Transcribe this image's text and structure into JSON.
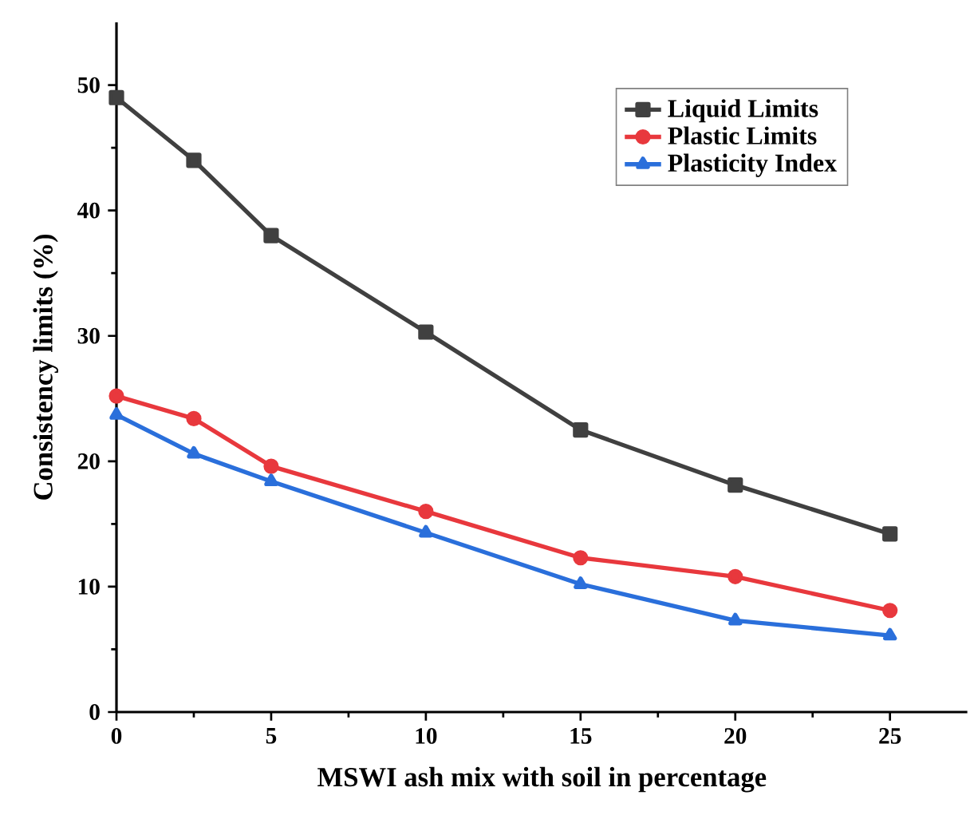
{
  "chart_data": {
    "type": "line",
    "xlabel": "MSWI ash mix with soil in percentage",
    "ylabel": "Consistency limits (%)",
    "x": [
      0,
      2.5,
      5,
      10,
      15,
      20,
      25
    ],
    "series": [
      {
        "name": "Liquid Limits",
        "color": "#404040",
        "marker": "square",
        "values": [
          49,
          44,
          38,
          30.3,
          22.5,
          18.1,
          14.2
        ]
      },
      {
        "name": "Plastic Limits",
        "color": "#e8383d",
        "marker": "circle",
        "values": [
          25.2,
          23.4,
          19.6,
          16,
          12.3,
          10.8,
          8.1
        ]
      },
      {
        "name": "Plasticity Index",
        "color": "#2a6fdb",
        "marker": "triangle",
        "values": [
          23.7,
          20.6,
          18.4,
          14.3,
          10.2,
          7.3,
          6.1
        ]
      }
    ],
    "xlim": [
      0,
      27.5
    ],
    "xticks": [
      0,
      5,
      10,
      15,
      20,
      25
    ],
    "ylim": [
      0,
      55
    ],
    "yticks": [
      0,
      10,
      20,
      30,
      40,
      50
    ],
    "grid": false,
    "legend": "top right",
    "line_style": "solid"
  }
}
